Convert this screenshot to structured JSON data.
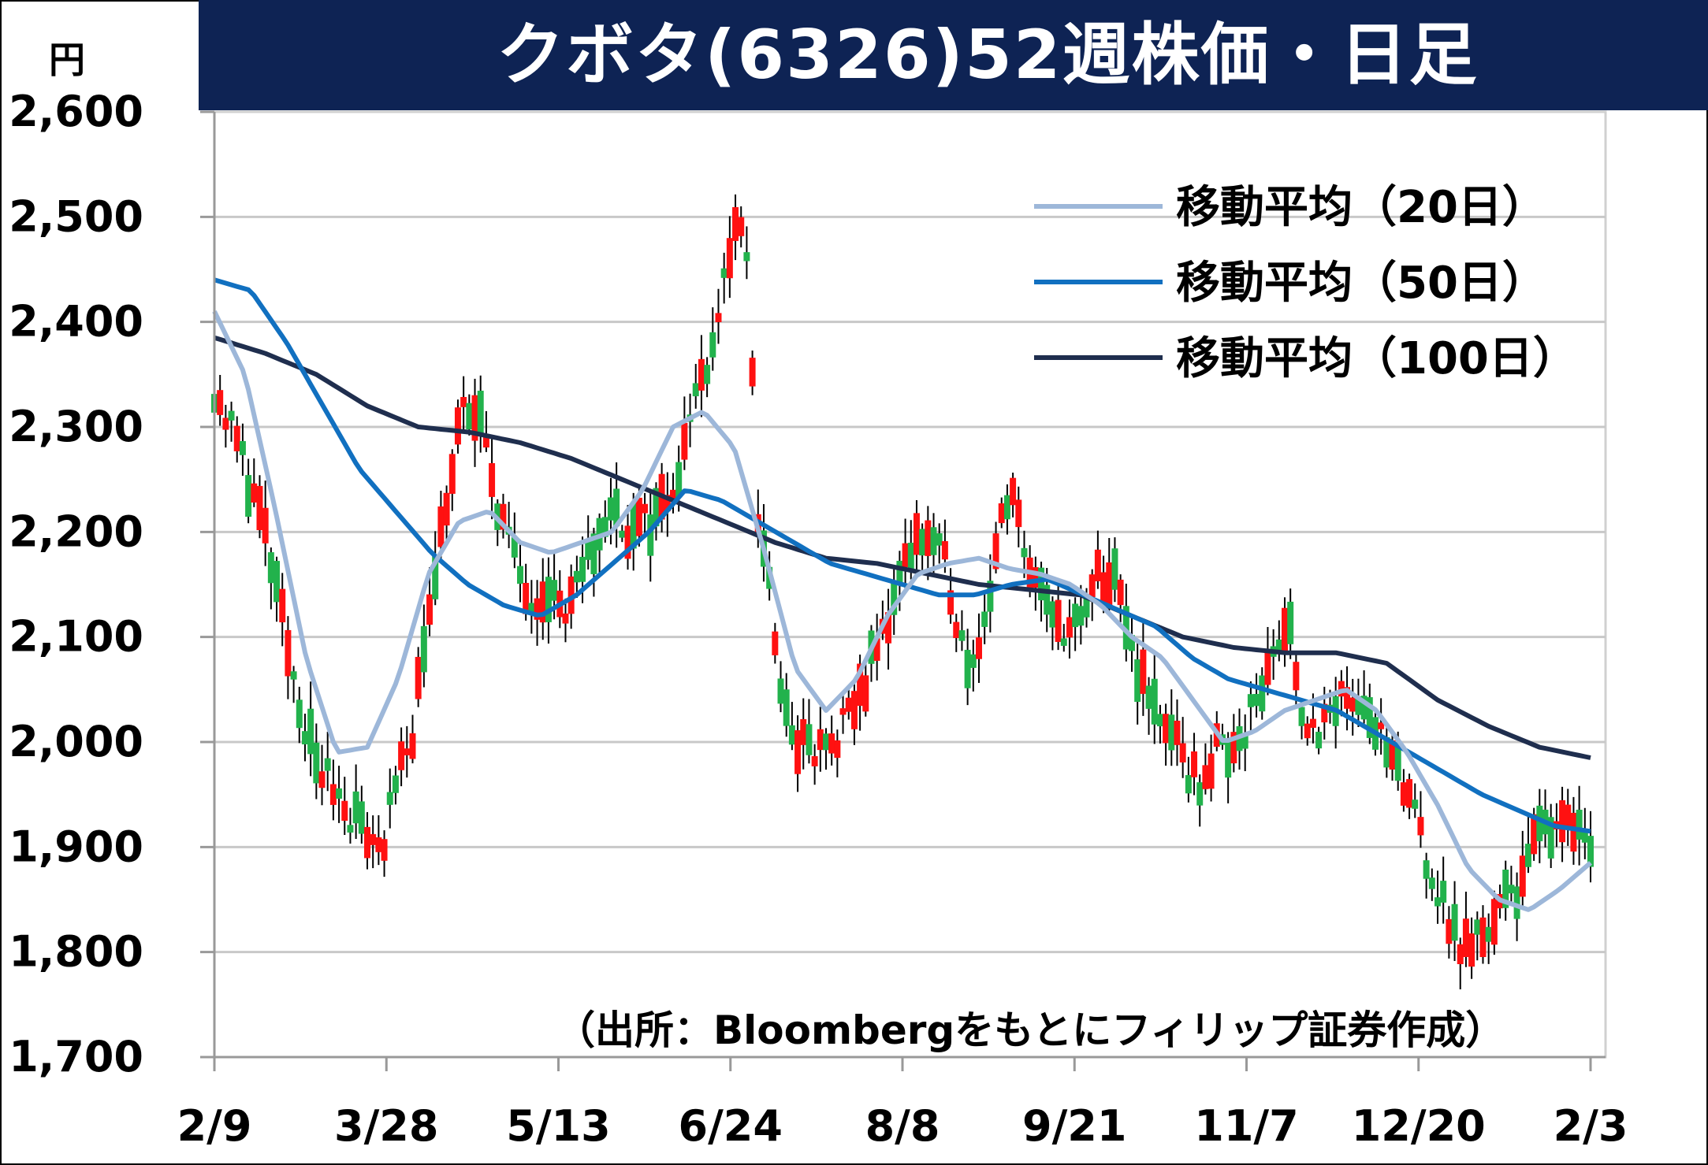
{
  "chart_title": "クボタ(6326)52週株価・日足",
  "unit": "円",
  "legend": [
    {
      "label": "移動平均（20日）",
      "color": "#9db7d9"
    },
    {
      "label": "移動平均（50日）",
      "color": "#1170c0"
    },
    {
      "label": "移動平均（100日）",
      "color": "#1f2e4e"
    }
  ],
  "source_note": "（出所：Bloombergをもとにフィリップ証券作成）",
  "colors": {
    "up": "#ff1111",
    "down": "#22b24c",
    "grid": "#c8c8c8",
    "title_bg": "#0e2354"
  },
  "chart_data": {
    "type": "candlestick",
    "title": "クボタ(6326)52週株価・日足",
    "ylabel": "円",
    "ylim": [
      1700,
      2600
    ],
    "yticks": [
      "1,700",
      "1,800",
      "1,900",
      "2,000",
      "2,100",
      "2,200",
      "2,300",
      "2,400",
      "2,500",
      "2,600"
    ],
    "ytick_values": [
      1700,
      1800,
      1900,
      2000,
      2100,
      2200,
      2300,
      2400,
      2500,
      2600
    ],
    "xticks": [
      "2/9",
      "3/28",
      "5/13",
      "6/24",
      "8/8",
      "9/21",
      "11/7",
      "12/20",
      "2/3"
    ],
    "x_count": 244,
    "grid": true,
    "legend_position": "top-right",
    "price_anchors": [
      [
        0,
        2340
      ],
      [
        6,
        2280
      ],
      [
        12,
        2200
      ],
      [
        18,
        2080
      ],
      [
        24,
        1980
      ],
      [
        30,
        1950
      ],
      [
        36,
        1915
      ],
      [
        40,
        1900
      ],
      [
        44,
        1960
      ],
      [
        48,
        2020
      ],
      [
        52,
        2150
      ],
      [
        56,
        2240
      ],
      [
        60,
        2320
      ],
      [
        64,
        2300
      ],
      [
        68,
        2230
      ],
      [
        72,
        2170
      ],
      [
        76,
        2140
      ],
      [
        80,
        2150
      ],
      [
        84,
        2120
      ],
      [
        88,
        2150
      ],
      [
        92,
        2200
      ],
      [
        96,
        2220
      ],
      [
        100,
        2200
      ],
      [
        104,
        2210
      ],
      [
        108,
        2230
      ],
      [
        112,
        2270
      ],
      [
        116,
        2340
      ],
      [
        120,
        2390
      ],
      [
        124,
        2480
      ],
      [
        128,
        2470
      ],
      [
        130,
        2220
      ],
      [
        133,
        2160
      ],
      [
        136,
        2030
      ],
      [
        140,
        2000
      ],
      [
        144,
        1990
      ],
      [
        148,
        1995
      ],
      [
        152,
        2020
      ],
      [
        156,
        2060
      ],
      [
        160,
        2100
      ],
      [
        164,
        2150
      ],
      [
        168,
        2200
      ],
      [
        172,
        2190
      ],
      [
        176,
        2160
      ],
      [
        180,
        2080
      ],
      [
        184,
        2100
      ],
      [
        188,
        2200
      ],
      [
        192,
        2230
      ],
      [
        196,
        2160
      ],
      [
        200,
        2120
      ],
      [
        204,
        2110
      ],
      [
        208,
        2110
      ],
      [
        212,
        2160
      ],
      [
        216,
        2150
      ],
      [
        220,
        2090
      ],
      [
        224,
        2040
      ],
      [
        228,
        2020
      ],
      [
        232,
        1980
      ],
      [
        236,
        1960
      ],
      [
        240,
        1990
      ],
      [
        244,
        2000
      ],
      [
        248,
        2020
      ],
      [
        252,
        2060
      ],
      [
        256,
        2110
      ],
      [
        258,
        2130
      ],
      [
        260,
        2030
      ],
      [
        264,
        2010
      ],
      [
        268,
        2020
      ],
      [
        272,
        2050
      ],
      [
        276,
        2040
      ],
      [
        280,
        2000
      ],
      [
        284,
        1960
      ],
      [
        288,
        1940
      ],
      [
        292,
        1870
      ],
      [
        296,
        1830
      ],
      [
        300,
        1800
      ],
      [
        304,
        1820
      ],
      [
        308,
        1840
      ],
      [
        312,
        1860
      ],
      [
        316,
        1900
      ],
      [
        320,
        1920
      ],
      [
        324,
        1940
      ],
      [
        330,
        1900
      ]
    ],
    "sma20_anchors": [
      [
        0,
        2410
      ],
      [
        5,
        2350
      ],
      [
        10,
        2220
      ],
      [
        15,
        2080
      ],
      [
        20,
        1990
      ],
      [
        25,
        1995
      ],
      [
        30,
        2060
      ],
      [
        35,
        2160
      ],
      [
        40,
        2210
      ],
      [
        45,
        2220
      ],
      [
        50,
        2190
      ],
      [
        55,
        2180
      ],
      [
        60,
        2190
      ],
      [
        65,
        2200
      ],
      [
        70,
        2240
      ],
      [
        75,
        2300
      ],
      [
        80,
        2315
      ],
      [
        85,
        2280
      ],
      [
        90,
        2180
      ],
      [
        95,
        2070
      ],
      [
        100,
        2030
      ],
      [
        105,
        2060
      ],
      [
        110,
        2120
      ],
      [
        115,
        2160
      ],
      [
        120,
        2170
      ],
      [
        125,
        2175
      ],
      [
        130,
        2165
      ],
      [
        135,
        2160
      ],
      [
        140,
        2150
      ],
      [
        145,
        2130
      ],
      [
        150,
        2100
      ],
      [
        155,
        2080
      ],
      [
        160,
        2040
      ],
      [
        165,
        2000
      ],
      [
        170,
        2010
      ],
      [
        175,
        2030
      ],
      [
        180,
        2040
      ],
      [
        185,
        2050
      ],
      [
        190,
        2030
      ],
      [
        195,
        1990
      ],
      [
        200,
        1940
      ],
      [
        205,
        1880
      ],
      [
        210,
        1850
      ],
      [
        215,
        1840
      ],
      [
        220,
        1860
      ],
      [
        225,
        1885
      ]
    ],
    "sma50_anchors": [
      [
        0,
        2440
      ],
      [
        5,
        2430
      ],
      [
        10,
        2380
      ],
      [
        15,
        2320
      ],
      [
        20,
        2260
      ],
      [
        25,
        2220
      ],
      [
        30,
        2180
      ],
      [
        35,
        2150
      ],
      [
        40,
        2130
      ],
      [
        45,
        2120
      ],
      [
        50,
        2140
      ],
      [
        55,
        2170
      ],
      [
        60,
        2200
      ],
      [
        65,
        2240
      ],
      [
        70,
        2230
      ],
      [
        75,
        2210
      ],
      [
        80,
        2190
      ],
      [
        85,
        2170
      ],
      [
        90,
        2160
      ],
      [
        95,
        2150
      ],
      [
        100,
        2140
      ],
      [
        105,
        2140
      ],
      [
        110,
        2150
      ],
      [
        115,
        2155
      ],
      [
        120,
        2140
      ],
      [
        125,
        2125
      ],
      [
        130,
        2110
      ],
      [
        135,
        2080
      ],
      [
        140,
        2060
      ],
      [
        145,
        2050
      ],
      [
        150,
        2040
      ],
      [
        155,
        2030
      ],
      [
        160,
        2010
      ],
      [
        165,
        1990
      ],
      [
        170,
        1970
      ],
      [
        175,
        1950
      ],
      [
        180,
        1935
      ],
      [
        185,
        1920
      ],
      [
        190,
        1915
      ]
    ],
    "sma100_anchors": [
      [
        0,
        2385
      ],
      [
        5,
        2370
      ],
      [
        10,
        2350
      ],
      [
        15,
        2320
      ],
      [
        20,
        2300
      ],
      [
        25,
        2295
      ],
      [
        30,
        2285
      ],
      [
        35,
        2270
      ],
      [
        40,
        2250
      ],
      [
        45,
        2230
      ],
      [
        50,
        2210
      ],
      [
        55,
        2190
      ],
      [
        60,
        2175
      ],
      [
        65,
        2170
      ],
      [
        70,
        2160
      ],
      [
        75,
        2150
      ],
      [
        80,
        2145
      ],
      [
        85,
        2140
      ],
      [
        90,
        2120
      ],
      [
        95,
        2100
      ],
      [
        100,
        2090
      ],
      [
        105,
        2085
      ],
      [
        110,
        2085
      ],
      [
        115,
        2075
      ],
      [
        120,
        2040
      ],
      [
        125,
        2015
      ],
      [
        130,
        1995
      ],
      [
        135,
        1985
      ]
    ]
  }
}
